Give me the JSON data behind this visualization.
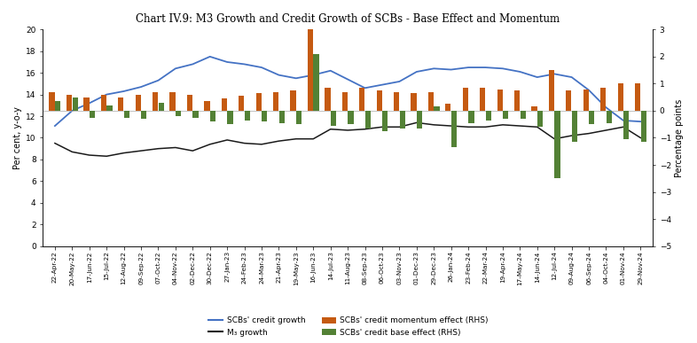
{
  "title": "Chart IV.9: M3 Growth and Credit Growth of SCBs - Base Effect and Momentum",
  "left_ylabel": "Per cent, y-o-y",
  "right_ylabel": "Percentage points",
  "left_ylim": [
    0,
    20
  ],
  "right_ylim": [
    -5,
    3
  ],
  "left_yticks": [
    0,
    2,
    4,
    6,
    8,
    10,
    12,
    14,
    16,
    18,
    20
  ],
  "right_yticks": [
    -5,
    -4,
    -3,
    -2,
    -1,
    0,
    1,
    2,
    3
  ],
  "x_labels": [
    "22-Apr-22",
    "20-May-22",
    "17-Jun-22",
    "15-Jul-22",
    "12-Aug-22",
    "09-Sep-22",
    "07-Oct-22",
    "04-Nov-22",
    "02-Dec-22",
    "30-Dec-22",
    "27-Jan-23",
    "24-Feb-23",
    "24-Mar-23",
    "21-Apr-23",
    "19-May-23",
    "16-Jun-23",
    "14-Jul-23",
    "11-Aug-23",
    "08-Sep-23",
    "06-Oct-23",
    "03-Nov-23",
    "01-Dec-23",
    "29-Dec-23",
    "26-Jan-24",
    "23-Feb-24",
    "22-Mar-24",
    "19-Apr-24",
    "17-May-24",
    "14-Jun-24",
    "12-Jul-24",
    "09-Aug-24",
    "06-Sep-24",
    "04-Oct-24",
    "01-Nov-24",
    "29-Nov-24"
  ],
  "credit_growth": [
    11.1,
    12.5,
    13.2,
    14.0,
    14.3,
    14.7,
    15.3,
    16.4,
    16.8,
    17.5,
    17.0,
    16.8,
    16.5,
    15.8,
    15.5,
    15.8,
    16.2,
    15.4,
    14.6,
    14.9,
    15.2,
    16.1,
    16.4,
    16.3,
    16.5,
    16.5,
    16.4,
    16.1,
    15.6,
    15.9,
    15.6,
    14.4,
    12.8,
    11.6,
    11.5
  ],
  "m3_growth": [
    9.5,
    8.7,
    8.4,
    8.3,
    8.6,
    8.8,
    9.0,
    9.1,
    8.8,
    9.4,
    9.8,
    9.5,
    9.4,
    9.7,
    9.9,
    9.9,
    10.8,
    10.7,
    10.8,
    11.0,
    11.0,
    11.4,
    11.2,
    11.1,
    11.0,
    11.0,
    11.2,
    11.1,
    11.0,
    9.9,
    10.2,
    10.4,
    10.7,
    11.0,
    10.0
  ],
  "credit_momentum": [
    0.7,
    0.6,
    0.5,
    0.6,
    0.5,
    0.6,
    0.7,
    0.7,
    0.6,
    0.35,
    0.45,
    0.55,
    0.65,
    0.7,
    0.75,
    3.0,
    0.85,
    0.7,
    0.85,
    0.75,
    0.7,
    0.65,
    0.7,
    0.25,
    0.85,
    0.85,
    0.8,
    0.75,
    0.15,
    1.5,
    0.75,
    0.8,
    0.85,
    1.0,
    1.0
  ],
  "credit_base": [
    0.35,
    0.5,
    -0.25,
    0.2,
    -0.25,
    -0.3,
    0.3,
    -0.2,
    -0.25,
    -0.4,
    -0.5,
    -0.35,
    -0.4,
    -0.45,
    -0.5,
    2.1,
    -0.55,
    -0.5,
    -0.65,
    -0.75,
    -0.65,
    -0.65,
    0.15,
    -1.35,
    -0.45,
    -0.35,
    -0.3,
    -0.3,
    -0.6,
    -2.5,
    -1.15,
    -0.5,
    -0.45,
    -1.05,
    -1.15
  ],
  "legend": {
    "credit_growth_label": "SCBs' credit growth",
    "m3_growth_label": "M₃ growth",
    "momentum_label": "SCBs' credit momentum effect (RHS)",
    "base_label": "SCBs' credit base effect (RHS)"
  },
  "colors": {
    "credit_growth": "#4472C4",
    "m3_growth": "#1a1a1a",
    "credit_momentum": "#C55A11",
    "credit_base": "#538135"
  },
  "background": "#ffffff"
}
